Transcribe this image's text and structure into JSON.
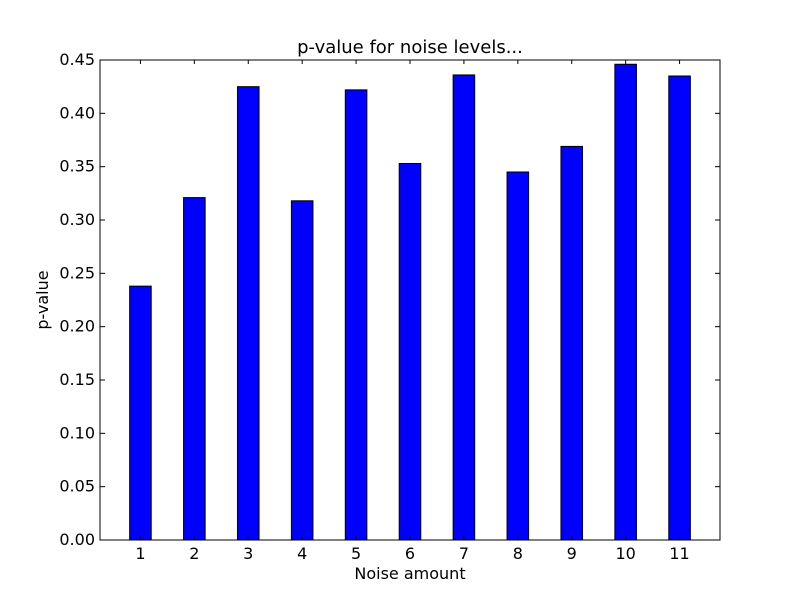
{
  "chart_data": {
    "type": "bar",
    "title": "p-value for noise levels...",
    "xlabel": "Noise amount",
    "ylabel": "p-value",
    "categories": [
      "1",
      "2",
      "3",
      "4",
      "5",
      "6",
      "7",
      "8",
      "9",
      "10",
      "11"
    ],
    "values": [
      0.238,
      0.321,
      0.425,
      0.318,
      0.422,
      0.353,
      0.436,
      0.345,
      0.369,
      0.446,
      0.435
    ],
    "ylim": [
      0,
      0.45
    ],
    "yticks": [
      "0.00",
      "0.05",
      "0.10",
      "0.15",
      "0.20",
      "0.25",
      "0.30",
      "0.35",
      "0.40",
      "0.45"
    ],
    "bar_color": "#0000ff",
    "grid": false
  }
}
